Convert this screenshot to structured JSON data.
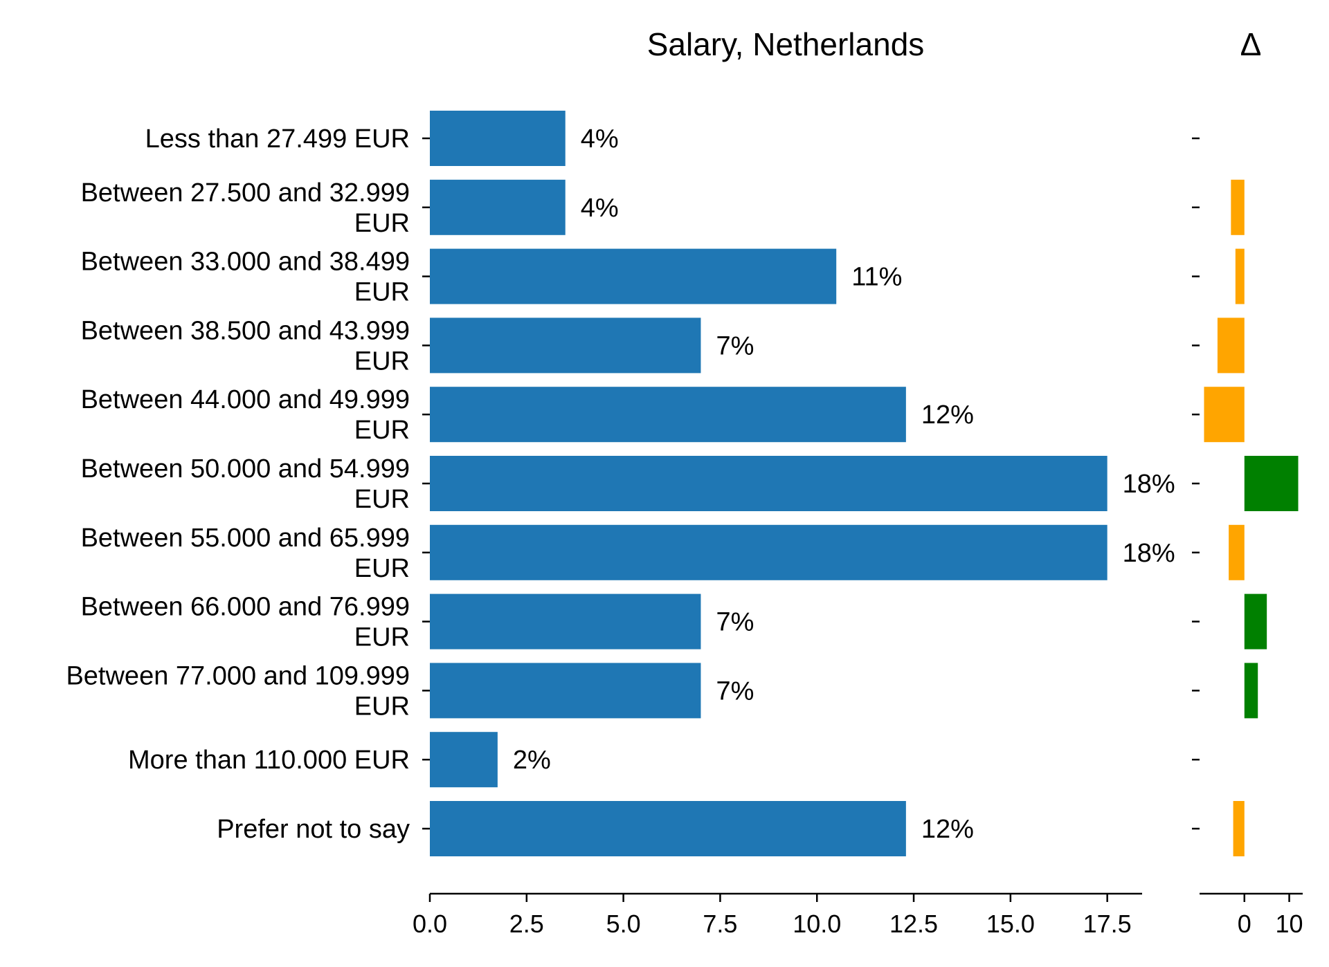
{
  "chart_data": [
    {
      "type": "bar",
      "orientation": "horizontal",
      "title": "Salary, Netherlands",
      "categories": [
        [
          "Less than 27.499 EUR"
        ],
        [
          "Between 27.500 and 32.999",
          "EUR"
        ],
        [
          "Between 33.000 and 38.499",
          "EUR"
        ],
        [
          "Between 38.500 and 43.999",
          "EUR"
        ],
        [
          "Between 44.000 and 49.999",
          "EUR"
        ],
        [
          "Between 50.000 and 54.999",
          "EUR"
        ],
        [
          "Between 55.000 and 65.999",
          "EUR"
        ],
        [
          "Between 66.000 and 76.999",
          "EUR"
        ],
        [
          "Between 77.000 and 109.999",
          "EUR"
        ],
        [
          "More than 110.000 EUR"
        ],
        [
          "Prefer not to say"
        ]
      ],
      "values": [
        3.5,
        3.5,
        10.5,
        7.0,
        12.3,
        17.5,
        17.5,
        7.0,
        7.0,
        1.75,
        12.3
      ],
      "value_labels": [
        "4%",
        "4%",
        "11%",
        "7%",
        "12%",
        "18%",
        "18%",
        "7%",
        "7%",
        "2%",
        "12%"
      ],
      "xlim": [
        0,
        18.4
      ],
      "xticks": [
        0.0,
        2.5,
        5.0,
        7.5,
        10.0,
        12.5,
        15.0,
        17.5
      ],
      "xtick_labels": [
        "0.0",
        "2.5",
        "5.0",
        "7.5",
        "10.0",
        "12.5",
        "15.0",
        "17.5"
      ],
      "grid": false,
      "bar_color": "#1f77b4"
    },
    {
      "type": "bar",
      "orientation": "horizontal",
      "title": "Δ",
      "values": [
        0,
        -3,
        -2,
        -6,
        -9,
        12,
        -3.5,
        5,
        3,
        0,
        -2.5
      ],
      "xlim": [
        -10,
        13
      ],
      "xticks": [
        0,
        10
      ],
      "xtick_labels": [
        "0",
        "10"
      ],
      "grid": false,
      "positive_color": "#008000",
      "negative_color": "#ffa500"
    }
  ]
}
